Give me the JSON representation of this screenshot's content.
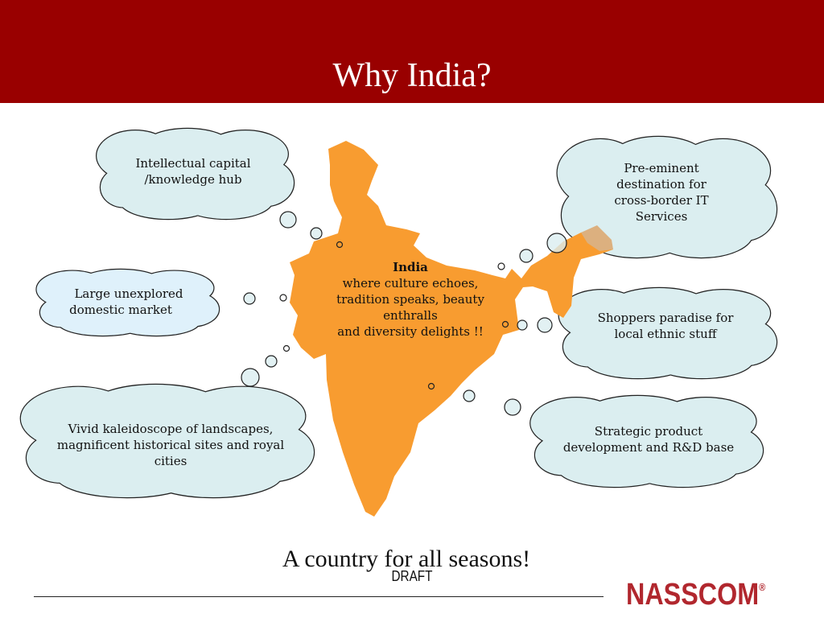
{
  "slide": {
    "title": "Why India?",
    "colors": {
      "header": "#990000",
      "map": "#f89c30",
      "cloud": "#dbeef0",
      "cloud_light": "#dff1fb",
      "logo": "#b1272e"
    },
    "center": {
      "heading": "India",
      "lines": [
        "where culture echoes,",
        "tradition speaks, beauty",
        "enthralls",
        "and diversity delights !!"
      ]
    },
    "clouds": [
      {
        "lines": [
          "Intellectual capital",
          "/knowledge hub"
        ]
      },
      {
        "lines": [
          "Large unexplored",
          "domestic market"
        ]
      },
      {
        "lines": [
          "Vivid kaleidoscope of landscapes,",
          "magnificent historical sites and royal",
          "cities"
        ]
      },
      {
        "lines": [
          "Pre-eminent",
          "destination for",
          "cross-border IT",
          "Services"
        ]
      },
      {
        "lines": [
          "Shoppers paradise for",
          "local ethnic stuff"
        ]
      },
      {
        "lines": [
          "Strategic product",
          "development and R&D base"
        ]
      }
    ],
    "tagline": "A country for all seasons!",
    "watermark": "DRAFT",
    "logo": {
      "text": "NASSCOM",
      "mark": "®"
    }
  }
}
